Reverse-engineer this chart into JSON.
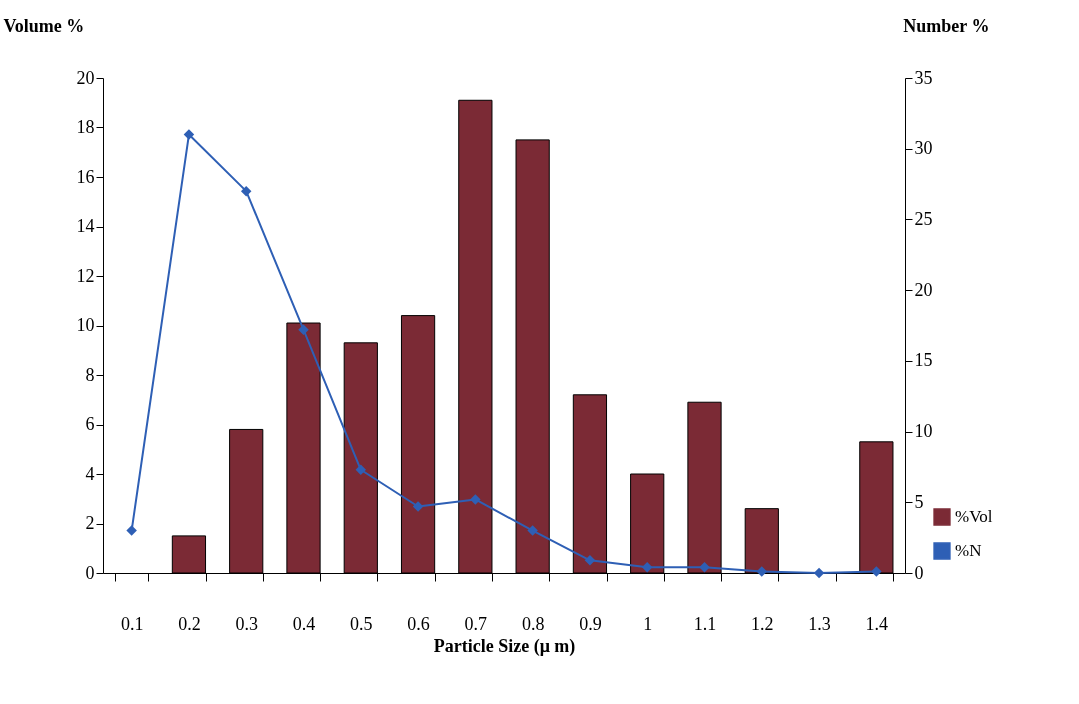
{
  "chart_data": {
    "type": "bar",
    "xlabel": "Particle Size (μ m)",
    "ylabel": "Volume %",
    "y2label": "Number %",
    "categories": [
      "0.1",
      "0.2",
      "0.3",
      "0.4",
      "0.5",
      "0.6",
      "0.7",
      "0.8",
      "0.9",
      "1",
      "1.1",
      "1.2",
      "1.3",
      "1.4"
    ],
    "series": [
      {
        "name": "%Vol",
        "color": "#7b2a35",
        "values": [
          null,
          1.5,
          5.8,
          10.1,
          9.3,
          10.4,
          19.1,
          17.5,
          7.2,
          4.0,
          6.9,
          2.6,
          null,
          5.3
        ]
      },
      {
        "name": "%N",
        "type": "line",
        "axis": "y2",
        "marker": "diamond",
        "color": "#2e5fb5",
        "values": [
          3,
          31,
          27,
          17.2,
          7.3,
          4.7,
          5.2,
          3,
          0.9,
          0.4,
          0.4,
          0.1,
          0,
          0.1
        ]
      }
    ],
    "ylim": [
      0,
      20
    ],
    "yticks": [
      0,
      2,
      4,
      6,
      8,
      10,
      12,
      14,
      16,
      18,
      20
    ],
    "y2lim": [
      0,
      35
    ],
    "y2ticks": [
      0,
      5,
      10,
      15,
      20,
      25,
      30,
      35
    ],
    "grid": false,
    "legend": "bottom right"
  }
}
